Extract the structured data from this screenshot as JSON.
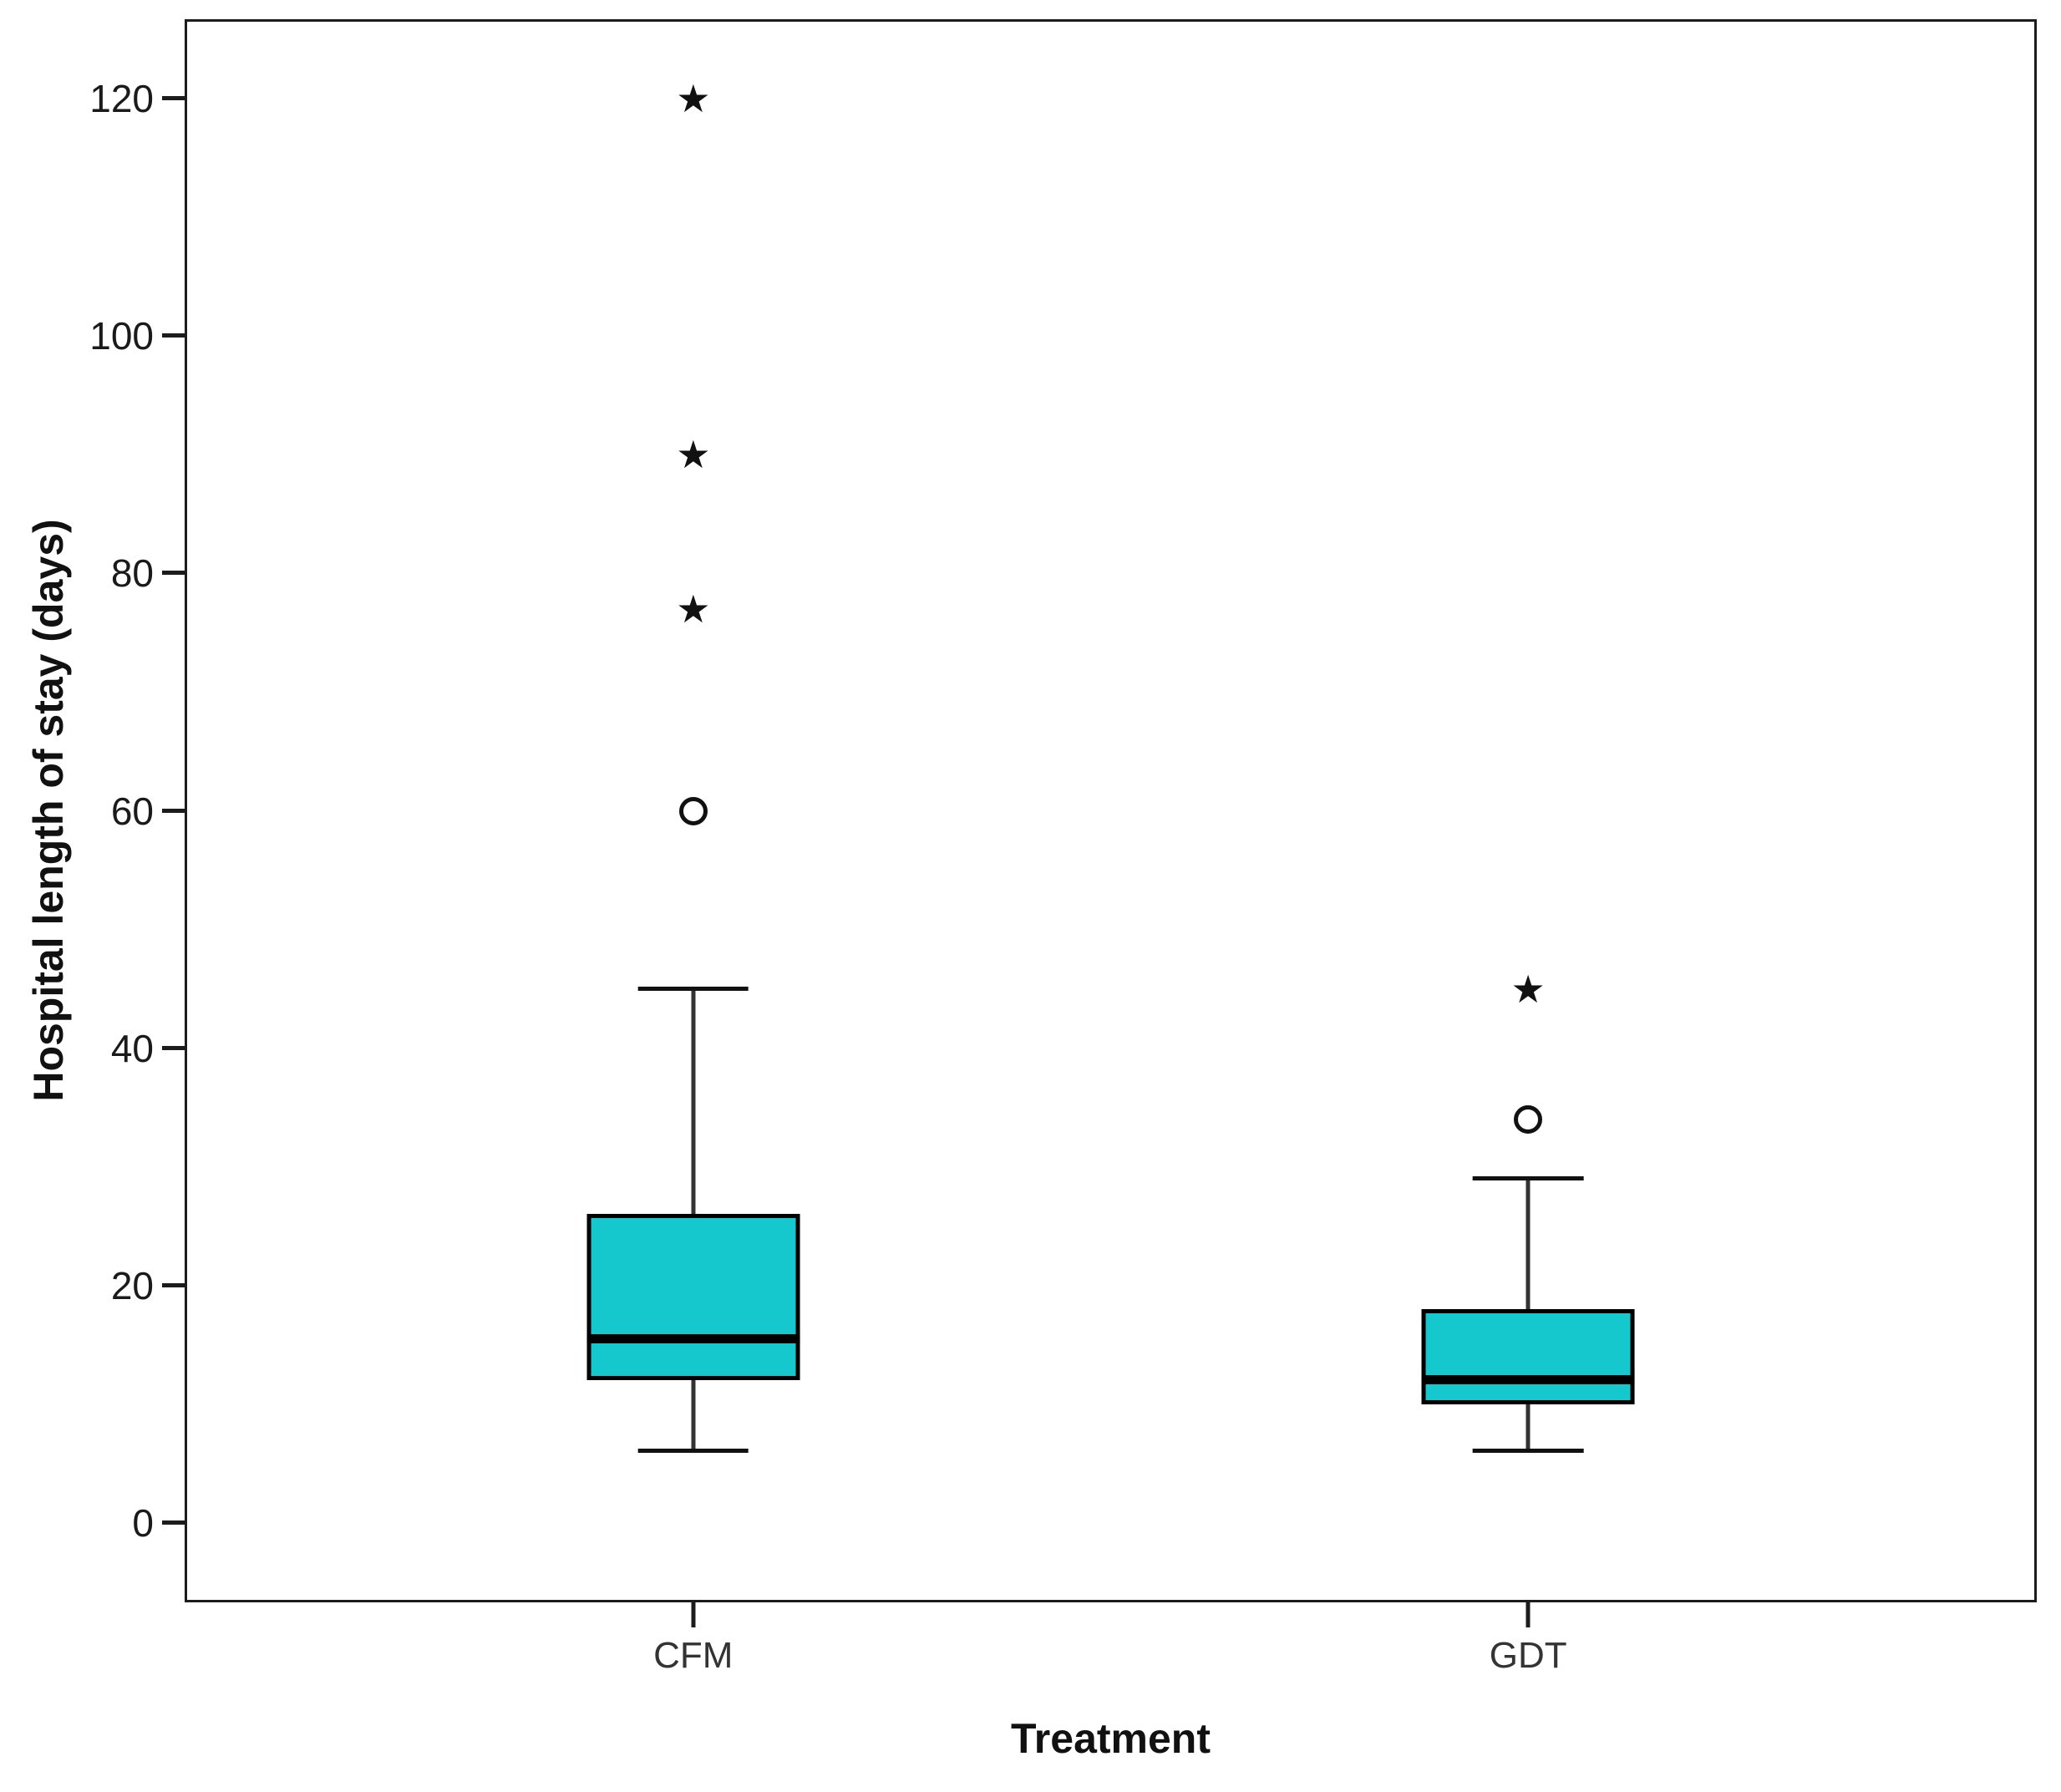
{
  "chart_data": {
    "type": "boxplot",
    "title": "",
    "xlabel": "Treatment",
    "ylabel": "Hospital length of stay (days)",
    "categories": [
      "CFM",
      "GDT"
    ],
    "y_ticks": [
      0,
      20,
      40,
      60,
      80,
      100,
      120
    ],
    "ylim": [
      -6.5,
      126.5
    ],
    "grid": false,
    "legend": "none",
    "series": [
      {
        "category": "CFM",
        "whisker_low": 6,
        "q1": 12,
        "median": 15.5,
        "q3": 26,
        "whisker_high": 45,
        "mild_outliers": [
          60
        ],
        "extreme_outliers": [
          77,
          90,
          120
        ]
      },
      {
        "category": "GDT",
        "whisker_low": 6,
        "q1": 10,
        "median": 12,
        "q3": 18,
        "whisker_high": 29,
        "mild_outliers": [
          34
        ],
        "extreme_outliers": [
          45
        ]
      }
    ],
    "colors": {
      "box_fill": "#15c8cd",
      "box_border": "#000000",
      "median": "#000000",
      "whisker": "#333333",
      "cap": "#111111",
      "frame": "#1c1c1c",
      "text": "#1a1a1a"
    },
    "markers": {
      "extreme_outlier_glyph": "★",
      "mild_outlier_glyph": "○"
    }
  }
}
